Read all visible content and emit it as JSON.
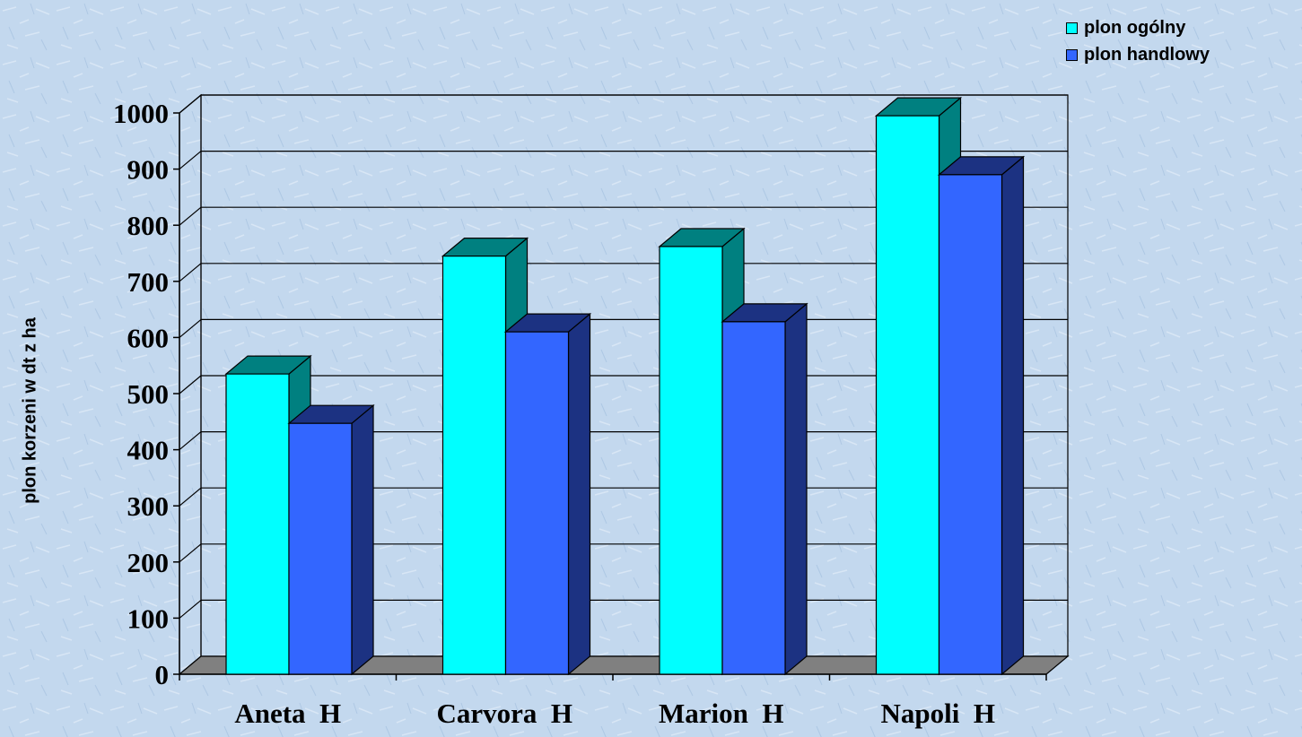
{
  "chart_data": {
    "type": "bar",
    "title": "",
    "xlabel": "",
    "ylabel": "plon korzeni w dt z ha",
    "categories": [
      "Aneta  H",
      "Carvora  H",
      "Marion  H",
      "Napoli  H"
    ],
    "series": [
      {
        "name": "plon ogólny",
        "values": [
          535,
          745,
          762,
          995
        ],
        "color": "#00ffff",
        "side_color": "#008080"
      },
      {
        "name": "plon handlowy",
        "values": [
          447,
          610,
          628,
          890
        ],
        "color": "#3366ff",
        "side_color": "#1c3282"
      }
    ],
    "ylim": [
      0,
      1000
    ],
    "yticks": [
      0,
      100,
      200,
      300,
      400,
      500,
      600,
      700,
      800,
      900,
      1000
    ],
    "grid": true,
    "legend_position": "top-right",
    "three_d": true
  }
}
